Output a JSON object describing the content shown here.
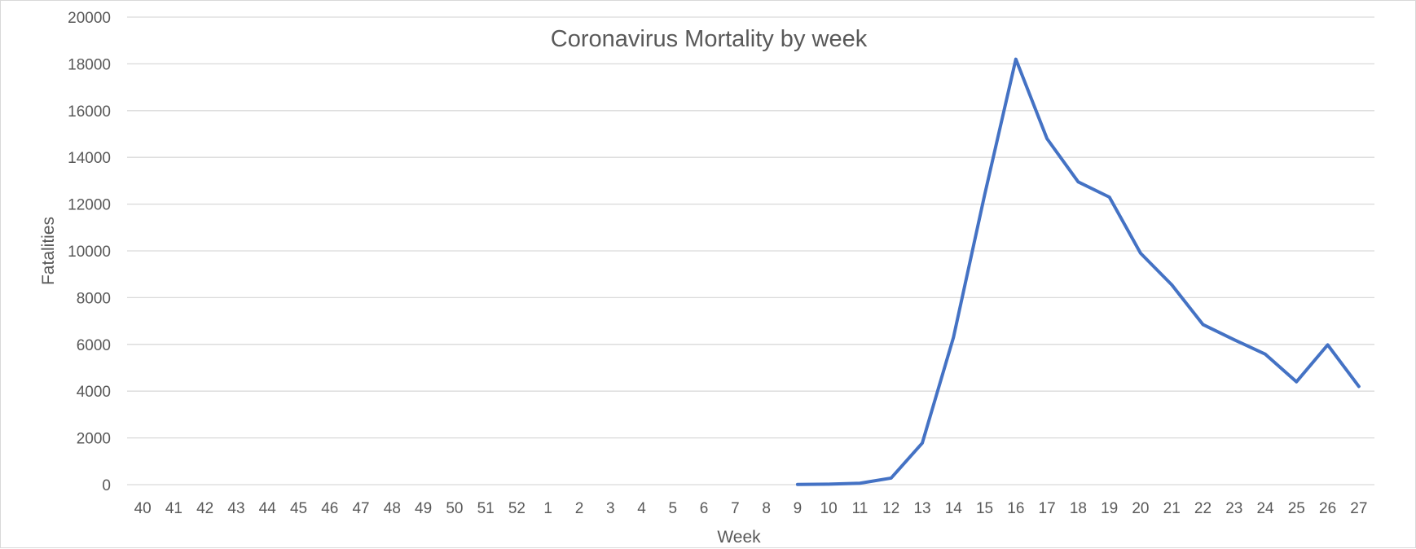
{
  "chart_data": {
    "type": "line",
    "title": "Coronavirus Mortality by week",
    "xlabel": "Week",
    "ylabel": "Fatalities",
    "ylim": [
      0,
      20000
    ],
    "y_ticks": [
      0,
      2000,
      4000,
      6000,
      8000,
      10000,
      12000,
      14000,
      16000,
      18000,
      20000
    ],
    "grid": true,
    "legend": "none",
    "categories": [
      "40",
      "41",
      "42",
      "43",
      "44",
      "45",
      "46",
      "47",
      "48",
      "49",
      "50",
      "51",
      "52",
      "1",
      "2",
      "3",
      "4",
      "5",
      "6",
      "7",
      "8",
      "9",
      "10",
      "11",
      "12",
      "13",
      "14",
      "15",
      "16",
      "17",
      "18",
      "19",
      "20",
      "21",
      "22",
      "23",
      "24",
      "25",
      "26",
      "27"
    ],
    "series": [
      {
        "name": "Fatalities",
        "color": "#4472c4",
        "values": [
          null,
          null,
          null,
          null,
          null,
          null,
          null,
          null,
          null,
          null,
          null,
          null,
          null,
          null,
          null,
          null,
          null,
          null,
          null,
          null,
          null,
          10,
          20,
          60,
          280,
          1780,
          6300,
          12400,
          18200,
          14800,
          12950,
          12300,
          9900,
          8550,
          6850,
          6200,
          5580,
          4400,
          5980,
          4200
        ]
      }
    ]
  }
}
